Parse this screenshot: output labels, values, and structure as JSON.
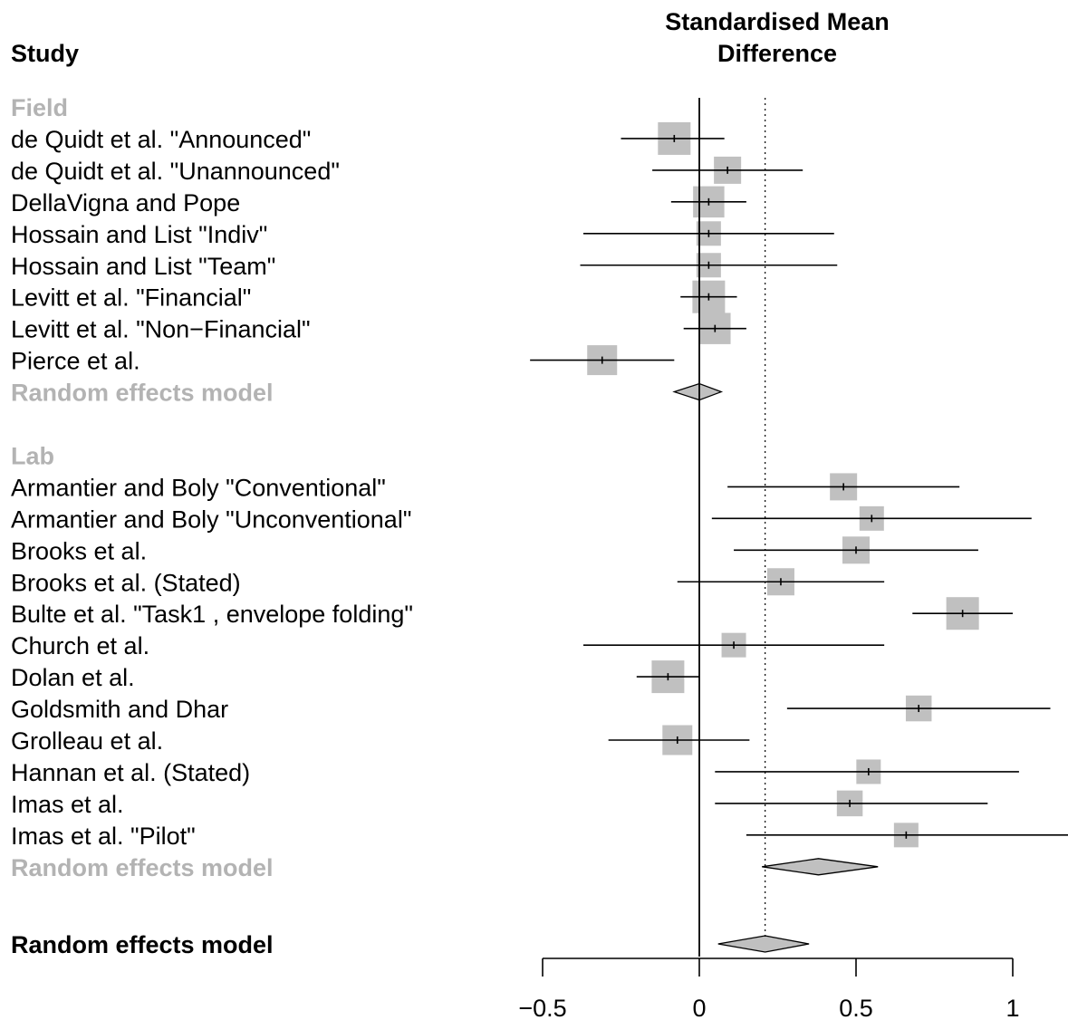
{
  "chart_data": {
    "type": "forest",
    "column_header": "Study",
    "axis_title_lines": [
      "Standardised Mean",
      "Difference"
    ],
    "x_ticks": [
      -0.5,
      0,
      0.5,
      1
    ],
    "x_tick_labels": [
      "−0.5",
      "0",
      "0.5",
      "1"
    ],
    "xlim": [
      -0.5,
      1.0
    ],
    "null_line": 0,
    "overall_line": 0.21,
    "grid": false,
    "colors": {
      "square": "#c0c0c0",
      "diamond": "#c0c0c0",
      "group_label": "#b3b3b3",
      "line": "#000000"
    },
    "groups": [
      {
        "name": "Field",
        "studies": [
          {
            "label": "de Quidt et al. \"Announced\"",
            "est": -0.08,
            "lo": -0.25,
            "hi": 0.08,
            "weight": 1.2
          },
          {
            "label": "de Quidt et al. \"Unannounced\"",
            "est": 0.09,
            "lo": -0.15,
            "hi": 0.33,
            "weight": 1.0
          },
          {
            "label": "DellaVigna and Pope",
            "est": 0.03,
            "lo": -0.09,
            "hi": 0.15,
            "weight": 1.15
          },
          {
            "label": "Hossain and List  \"Indiv\"",
            "est": 0.03,
            "lo": -0.37,
            "hi": 0.43,
            "weight": 0.9
          },
          {
            "label": "Hossain and List  \"Team\"",
            "est": 0.03,
            "lo": -0.38,
            "hi": 0.44,
            "weight": 0.9
          },
          {
            "label": "Levitt et al.   \"Financial\"",
            "est": 0.03,
            "lo": -0.06,
            "hi": 0.12,
            "weight": 1.2
          },
          {
            "label": "Levitt et al.   \"Non−Financial\"",
            "est": 0.05,
            "lo": -0.05,
            "hi": 0.15,
            "weight": 1.15
          },
          {
            "label": "Pierce et al.",
            "est": -0.31,
            "lo": -0.54,
            "hi": -0.08,
            "weight": 1.1
          }
        ],
        "pooled": {
          "label": "Random effects model",
          "est": 0.0,
          "lo": -0.08,
          "hi": 0.07
        }
      },
      {
        "name": "Lab",
        "studies": [
          {
            "label": "Armantier and Boly  \"Conventional\"",
            "est": 0.46,
            "lo": 0.09,
            "hi": 0.83,
            "weight": 1.0
          },
          {
            "label": "Armantier and Boly  \"Unconventional\"",
            "est": 0.55,
            "lo": 0.04,
            "hi": 1.06,
            "weight": 0.9
          },
          {
            "label": "Brooks et al.",
            "est": 0.5,
            "lo": 0.11,
            "hi": 0.89,
            "weight": 1.0
          },
          {
            "label": "Brooks et al. (Stated)",
            "est": 0.26,
            "lo": -0.07,
            "hi": 0.59,
            "weight": 1.0
          },
          {
            "label": "Bulte et al. \"Task1 , envelope folding\"",
            "est": 0.84,
            "lo": 0.68,
            "hi": 1.0,
            "weight": 1.2
          },
          {
            "label": "Church et al.",
            "est": 0.11,
            "lo": -0.37,
            "hi": 0.59,
            "weight": 0.9
          },
          {
            "label": "Dolan et al.",
            "est": -0.1,
            "lo": -0.2,
            "hi": 0.0,
            "weight": 1.2
          },
          {
            "label": "Goldsmith and Dhar",
            "est": 0.7,
            "lo": 0.28,
            "hi": 1.12,
            "weight": 0.95
          },
          {
            "label": "Grolleau et al.",
            "est": -0.07,
            "lo": -0.29,
            "hi": 0.16,
            "weight": 1.1
          },
          {
            "label": "Hannan et al.  (Stated)",
            "est": 0.54,
            "lo": 0.05,
            "hi": 1.02,
            "weight": 0.9
          },
          {
            "label": "Imas et al.",
            "est": 0.48,
            "lo": 0.05,
            "hi": 0.92,
            "weight": 0.95
          },
          {
            "label": "Imas et al.  \"Pilot\"",
            "est": 0.66,
            "lo": 0.15,
            "hi": 1.18,
            "weight": 0.9
          }
        ],
        "pooled": {
          "label": "Random effects model",
          "est": 0.38,
          "lo": 0.2,
          "hi": 0.57
        }
      }
    ],
    "overall": {
      "label": "Random effects model",
      "est": 0.21,
      "lo": 0.06,
      "hi": 0.35
    }
  }
}
